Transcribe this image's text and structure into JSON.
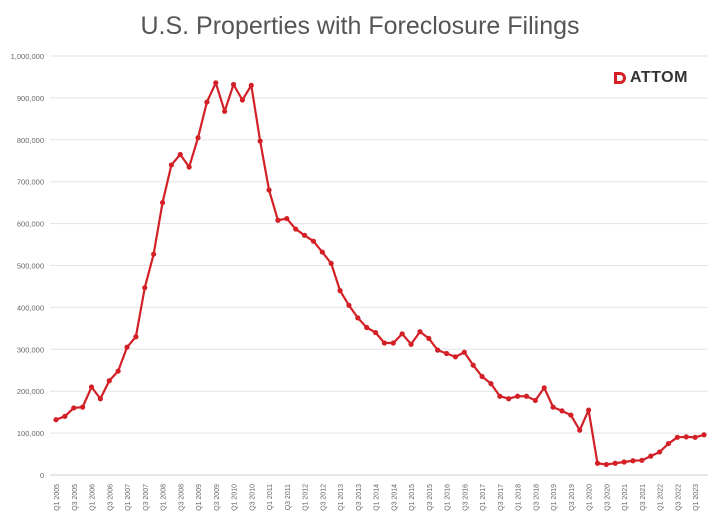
{
  "chart_data": {
    "type": "line",
    "title": "U.S. Properties with Foreclosure Filings",
    "logo_text": "ATTOM",
    "ylim": [
      0,
      1000000
    ],
    "yticks": [
      0,
      100000,
      200000,
      300000,
      400000,
      500000,
      600000,
      700000,
      800000,
      900000,
      1000000
    ],
    "ytick_labels": [
      "0",
      "100,000",
      "200,000",
      "300,000",
      "400,000",
      "500,000",
      "600,000",
      "700,000",
      "800,000",
      "900,000",
      "1,000,000"
    ],
    "grid": true,
    "line_color": "#d32027",
    "xtick_labels": [
      "Q1 2005",
      "Q3 2005",
      "Q1 2006",
      "Q3 2006",
      "Q1 2007",
      "Q3 2007",
      "Q1 2008",
      "Q3 2008",
      "Q1 2009",
      "Q3 2009",
      "Q1 2010",
      "Q3 2010",
      "Q1 2011",
      "Q3 2011",
      "Q1 2012",
      "Q3 2012",
      "Q1 2013",
      "Q3 2013",
      "Q1 2014",
      "Q3 2014",
      "Q1 2015",
      "Q3 2015",
      "Q1 2016",
      "Q3 2016",
      "Q1 2017",
      "Q3 2017",
      "Q1 2018",
      "Q3 2018",
      "Q1 2019",
      "Q3 2019",
      "Q1 2020",
      "Q3 2020",
      "Q1 2021",
      "Q3 2021",
      "Q1 2022",
      "Q3 2022",
      "Q1 2023"
    ],
    "series": [
      {
        "values": [
          132000,
          140000,
          160000,
          162000,
          210000,
          182000,
          225000,
          248000,
          305000,
          330000,
          447000,
          527000,
          650000,
          740000,
          765000,
          735000,
          805000,
          890000,
          936000,
          868000,
          932000,
          895000,
          930000,
          797000,
          680000,
          608000,
          612000,
          587000,
          572000,
          558000,
          532000,
          505000,
          440000,
          405000,
          375000,
          352000,
          340000,
          315000,
          315000,
          337000,
          312000,
          342000,
          326000,
          298000,
          290000,
          282000,
          293000,
          262000,
          235000,
          218000,
          188000,
          182000,
          188000,
          188000,
          178000,
          208000,
          162000,
          153000,
          143000,
          107000,
          155000,
          28000,
          25000,
          28000,
          31000,
          34000,
          35000,
          45000,
          55000,
          75000,
          90000,
          91000,
          90000,
          96000
        ]
      }
    ]
  }
}
